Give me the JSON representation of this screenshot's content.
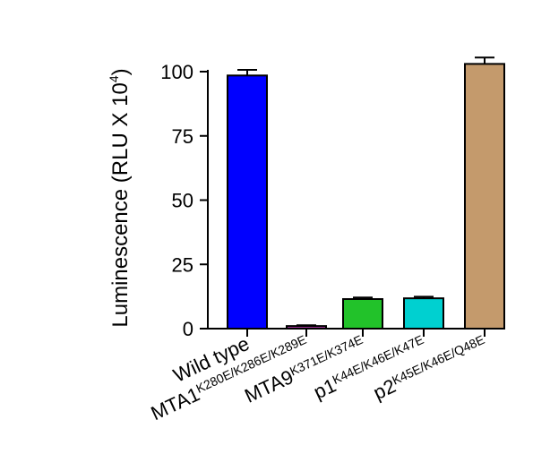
{
  "chart_data": {
    "type": "bar",
    "title": "",
    "xlabel": "",
    "ylabel": "Luminescence (RLU X 10",
    "ylabel_sup": "4",
    "ylabel_close": ")",
    "ylim": [
      0,
      100
    ],
    "yticks": [
      "0",
      "25",
      "50",
      "75",
      "100"
    ],
    "categories": [
      {
        "main": "Wild type",
        "sub": ""
      },
      {
        "main": "MTA1",
        "sub": "K280E/K286E/K289E"
      },
      {
        "main": "MTA9",
        "sub": "K371E/K374E"
      },
      {
        "main": "p1",
        "sub": "K44E/K46E/K47E"
      },
      {
        "main": "p2",
        "sub": "K45E/K46E/Q48E"
      }
    ],
    "values": [
      98.5,
      1,
      11.5,
      11.8,
      103
    ],
    "errors": [
      2.2,
      0.3,
      0.6,
      0.6,
      2.5
    ],
    "colors": [
      "#0000ff",
      "#b03aa8",
      "#22c22a",
      "#00d0d0",
      "#c49a6c"
    ],
    "grid": false,
    "legend": "none"
  }
}
